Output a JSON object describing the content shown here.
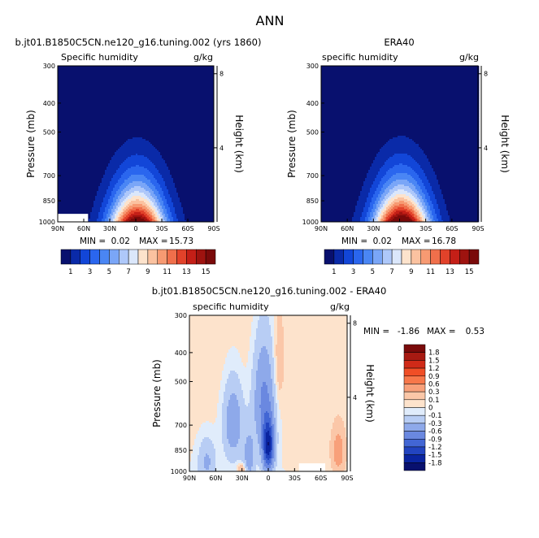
{
  "figure": {
    "title": "ANN",
    "panel_left_title": "b.jt01.B1850C5CN.ne120_g16.tuning.002 (yrs 1860)",
    "panel_right_title": "ERA40",
    "panel_bottom_title": "b.jt01.B1850C5CN.ne120_g16.tuning.002 - ERA40"
  },
  "colors": {
    "deep_blue": "#08106e",
    "light_blue": "#dbe7fb",
    "peach": "#fde3cc",
    "deep_red": "#7a0a0a"
  },
  "chart_data": [
    {
      "type": "heatmap",
      "id": "model",
      "title": "Specific humidity",
      "units": "g/kg",
      "ylabel": "Pressure (mb)",
      "y2label": "Height (km)",
      "xticks": [
        "90N",
        "60N",
        "30N",
        "0",
        "30S",
        "60S",
        "90S"
      ],
      "x_range": [
        90,
        -90
      ],
      "yticks": [
        "300",
        "400",
        "500",
        "700",
        "850",
        "1000"
      ],
      "y2ticks": [
        "8",
        "4"
      ],
      "y_range_mb": [
        300,
        1000
      ],
      "stats": {
        "min_label": "MIN =",
        "min": "0.02",
        "max_label": "MAX =",
        "max": "15.73"
      },
      "peak_value": 15.73,
      "masked_region_lat": [
        55,
        90
      ],
      "masked_region_mb": [
        940,
        1000
      ],
      "colorbar_labels": [
        "1",
        "3",
        "5",
        "7",
        "9",
        "11",
        "13",
        "15"
      ],
      "colorbar_levels": [
        1,
        2,
        3,
        4,
        5,
        6,
        7,
        8,
        9,
        10,
        11,
        12,
        13,
        14,
        15
      ]
    },
    {
      "type": "heatmap",
      "id": "era40",
      "title": "specific humidity",
      "units": "g/kg",
      "ylabel": "Pressure (mb)",
      "y2label": "Height (km)",
      "xticks": [
        "90N",
        "60N",
        "30N",
        "0",
        "30S",
        "60S",
        "90S"
      ],
      "x_range": [
        90,
        -90
      ],
      "yticks": [
        "300",
        "400",
        "500",
        "700",
        "850",
        "1000"
      ],
      "y2ticks": [
        "8",
        "4"
      ],
      "y_range_mb": [
        300,
        1000
      ],
      "stats": {
        "min_label": "MIN =",
        "min": "0.02",
        "max_label": "MAX =",
        "max": "16.78"
      },
      "peak_value": 16.78,
      "colorbar_labels": [
        "1",
        "3",
        "5",
        "7",
        "9",
        "11",
        "13",
        "15"
      ],
      "colorbar_levels": [
        1,
        2,
        3,
        4,
        5,
        6,
        7,
        8,
        9,
        10,
        11,
        12,
        13,
        14,
        15
      ]
    },
    {
      "type": "heatmap",
      "id": "difference",
      "title": "specific humidity",
      "units": "g/kg",
      "ylabel": "Pressure (mb)",
      "y2label": "Height (km)",
      "xticks": [
        "90N",
        "60N",
        "30N",
        "0",
        "30S",
        "60S",
        "90S"
      ],
      "x_range": [
        90,
        -90
      ],
      "yticks": [
        "300",
        "400",
        "500",
        "700",
        "850",
        "1000"
      ],
      "y2ticks": [
        "8",
        "4"
      ],
      "y_range_mb": [
        300,
        1000
      ],
      "stats": {
        "min_label": "MIN =",
        "min": "-1.86",
        "max_label": "MAX =",
        "max": "0.53"
      },
      "masked_region_lat": [
        -35,
        -65
      ],
      "masked_region_mb": [
        940,
        1000
      ],
      "colorbar_labels": [
        "1.8",
        "1.5",
        "1.2",
        "0.9",
        "0.6",
        "0.3",
        "0.1",
        "0",
        "-0.1",
        "-0.3",
        "-0.6",
        "-0.9",
        "-1.2",
        "-1.5",
        "-1.8"
      ]
    }
  ]
}
